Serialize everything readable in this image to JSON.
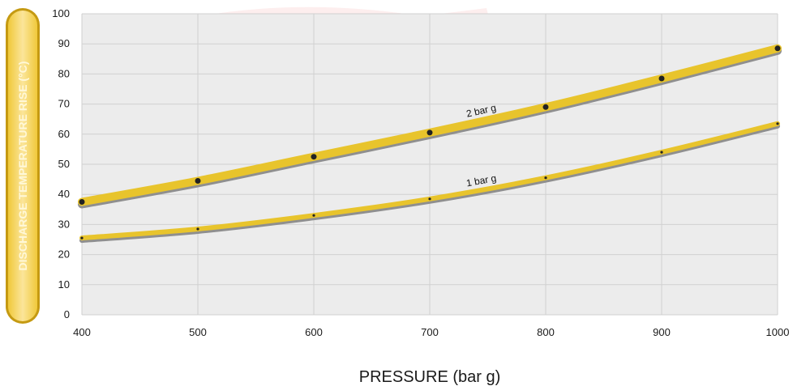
{
  "chart_data": {
    "type": "line",
    "title": "",
    "xlabel": "PRESSURE (bar g)",
    "ylabel": "DISCHARGE TEMPERATURE RISE (°C)",
    "x": [
      400,
      500,
      600,
      700,
      800,
      900,
      1000
    ],
    "xlim": [
      400,
      1000
    ],
    "ylim": [
      0,
      100
    ],
    "xticks": [
      "400",
      "500",
      "600",
      "700",
      "800",
      "900",
      "1000"
    ],
    "yticks": [
      "0",
      "10",
      "20",
      "30",
      "40",
      "50",
      "60",
      "70",
      "80",
      "90",
      "100"
    ],
    "grid": true,
    "series": [
      {
        "name": "2 bar g",
        "values": [
          37.5,
          44.5,
          52.5,
          60.5,
          69,
          78.5,
          88.5
        ]
      },
      {
        "name": "1 bar g",
        "values": [
          25.5,
          28.5,
          33,
          38.5,
          45.5,
          54,
          63.5
        ]
      }
    ]
  },
  "colors": {
    "band": "#e8c42c",
    "shadow": "#8f8f8f",
    "plot_background": "#ececec",
    "grid": "#d0d0d0",
    "point": "#222222"
  }
}
